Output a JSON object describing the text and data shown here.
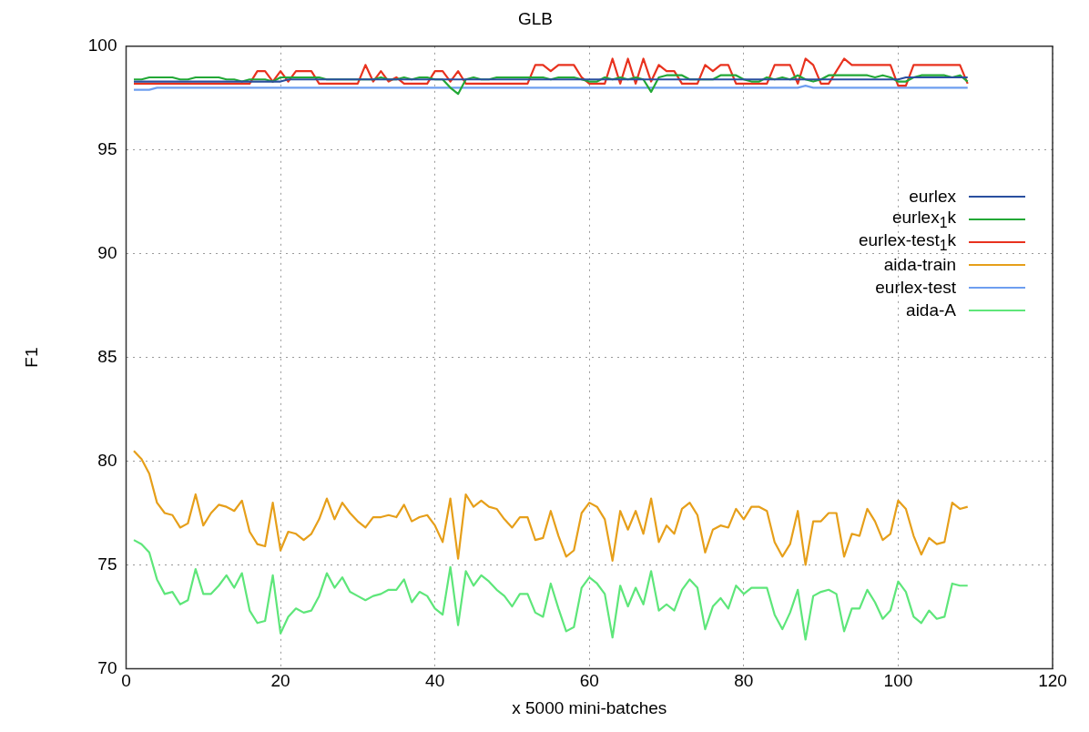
{
  "chart_data": {
    "type": "line",
    "title": "GLB",
    "xlabel": "x 5000 mini-batches",
    "ylabel": "F1",
    "x": [
      1,
      2,
      3,
      4,
      5,
      6,
      7,
      8,
      9,
      10,
      11,
      12,
      13,
      14,
      15,
      16,
      17,
      18,
      19,
      20,
      21,
      22,
      23,
      24,
      25,
      26,
      27,
      28,
      29,
      30,
      31,
      32,
      33,
      34,
      35,
      36,
      37,
      38,
      39,
      40,
      41,
      42,
      43,
      44,
      45,
      46,
      47,
      48,
      49,
      50,
      51,
      52,
      53,
      54,
      55,
      56,
      57,
      58,
      59,
      60,
      61,
      62,
      63,
      64,
      65,
      66,
      67,
      68,
      69,
      70,
      71,
      72,
      73,
      74,
      75,
      76,
      77,
      78,
      79,
      80,
      81,
      82,
      83,
      84,
      85,
      86,
      87,
      88,
      89,
      90,
      91,
      92,
      93,
      94,
      95,
      96,
      97,
      98,
      99,
      100,
      101,
      102,
      103,
      104,
      105,
      106,
      107,
      108,
      109
    ],
    "series": [
      {
        "name": "eurlex",
        "color": "#2a4f9f",
        "values": [
          98.3,
          98.3,
          98.3,
          98.3,
          98.3,
          98.3,
          98.3,
          98.3,
          98.3,
          98.3,
          98.3,
          98.3,
          98.3,
          98.3,
          98.3,
          98.3,
          98.3,
          98.3,
          98.3,
          98.3,
          98.4,
          98.4,
          98.4,
          98.4,
          98.4,
          98.4,
          98.4,
          98.4,
          98.4,
          98.4,
          98.4,
          98.4,
          98.4,
          98.4,
          98.4,
          98.4,
          98.4,
          98.4,
          98.4,
          98.4,
          98.4,
          98.4,
          98.4,
          98.4,
          98.4,
          98.4,
          98.4,
          98.4,
          98.4,
          98.4,
          98.4,
          98.4,
          98.4,
          98.4,
          98.4,
          98.4,
          98.4,
          98.4,
          98.4,
          98.4,
          98.4,
          98.4,
          98.4,
          98.4,
          98.4,
          98.4,
          98.4,
          98.4,
          98.4,
          98.4,
          98.4,
          98.4,
          98.4,
          98.4,
          98.4,
          98.4,
          98.4,
          98.4,
          98.4,
          98.4,
          98.4,
          98.4,
          98.4,
          98.4,
          98.4,
          98.4,
          98.4,
          98.4,
          98.4,
          98.4,
          98.4,
          98.4,
          98.4,
          98.4,
          98.4,
          98.4,
          98.4,
          98.4,
          98.4,
          98.4,
          98.5,
          98.5,
          98.5,
          98.5,
          98.5,
          98.5,
          98.5,
          98.5,
          98.5
        ]
      },
      {
        "name": "eurlex$_{1}$k",
        "color": "#22a836",
        "values": [
          98.4,
          98.4,
          98.5,
          98.5,
          98.5,
          98.5,
          98.4,
          98.4,
          98.5,
          98.5,
          98.5,
          98.5,
          98.4,
          98.4,
          98.3,
          98.4,
          98.4,
          98.4,
          98.3,
          98.5,
          98.5,
          98.5,
          98.5,
          98.5,
          98.5,
          98.4,
          98.4,
          98.4,
          98.4,
          98.4,
          98.4,
          98.4,
          98.5,
          98.4,
          98.4,
          98.5,
          98.4,
          98.5,
          98.5,
          98.4,
          98.4,
          98.0,
          97.7,
          98.4,
          98.5,
          98.4,
          98.4,
          98.5,
          98.5,
          98.5,
          98.5,
          98.5,
          98.5,
          98.5,
          98.4,
          98.5,
          98.5,
          98.5,
          98.4,
          98.3,
          98.3,
          98.5,
          98.4,
          98.5,
          98.4,
          98.5,
          98.4,
          97.8,
          98.5,
          98.6,
          98.6,
          98.6,
          98.4,
          98.4,
          98.4,
          98.4,
          98.6,
          98.6,
          98.6,
          98.4,
          98.3,
          98.3,
          98.5,
          98.4,
          98.5,
          98.4,
          98.6,
          98.4,
          98.3,
          98.4,
          98.6,
          98.6,
          98.6,
          98.6,
          98.6,
          98.6,
          98.5,
          98.6,
          98.5,
          98.3,
          98.3,
          98.5,
          98.6,
          98.6,
          98.6,
          98.6,
          98.5,
          98.6,
          98.3
        ]
      },
      {
        "name": "eurlex-test$_{1}$k",
        "color": "#e8321e",
        "values": [
          98.2,
          98.2,
          98.2,
          98.2,
          98.2,
          98.2,
          98.2,
          98.2,
          98.2,
          98.2,
          98.2,
          98.2,
          98.2,
          98.2,
          98.2,
          98.2,
          98.8,
          98.8,
          98.3,
          98.8,
          98.3,
          98.8,
          98.8,
          98.8,
          98.2,
          98.2,
          98.2,
          98.2,
          98.2,
          98.2,
          99.1,
          98.3,
          98.8,
          98.3,
          98.5,
          98.2,
          98.2,
          98.2,
          98.2,
          98.8,
          98.8,
          98.3,
          98.8,
          98.2,
          98.2,
          98.2,
          98.2,
          98.2,
          98.2,
          98.2,
          98.2,
          98.2,
          99.1,
          99.1,
          98.8,
          99.1,
          99.1,
          99.1,
          98.5,
          98.2,
          98.2,
          98.2,
          99.4,
          98.2,
          99.4,
          98.2,
          99.4,
          98.3,
          99.1,
          98.8,
          98.8,
          98.2,
          98.2,
          98.2,
          99.1,
          98.8,
          99.1,
          99.1,
          98.2,
          98.2,
          98.2,
          98.2,
          98.2,
          99.1,
          99.1,
          99.1,
          98.2,
          99.4,
          99.1,
          98.2,
          98.2,
          98.8,
          99.4,
          99.1,
          99.1,
          99.1,
          99.1,
          99.1,
          99.1,
          98.1,
          98.1,
          99.1,
          99.1,
          99.1,
          99.1,
          99.1,
          99.1,
          99.1,
          98.2
        ]
      },
      {
        "name": "aida-train",
        "color": "#e69f1a",
        "values": [
          80.5,
          80.1,
          79.4,
          78.0,
          77.5,
          77.4,
          76.8,
          77.0,
          78.4,
          76.9,
          77.5,
          77.9,
          77.8,
          77.6,
          78.1,
          76.6,
          76.0,
          75.9,
          78.0,
          75.7,
          76.6,
          76.5,
          76.2,
          76.5,
          77.2,
          78.2,
          77.2,
          78.0,
          77.5,
          77.1,
          76.8,
          77.3,
          77.3,
          77.4,
          77.3,
          77.9,
          77.1,
          77.3,
          77.4,
          76.9,
          76.1,
          78.2,
          75.3,
          78.4,
          77.8,
          78.1,
          77.8,
          77.7,
          77.2,
          76.8,
          77.3,
          77.3,
          76.2,
          76.3,
          77.6,
          76.4,
          75.4,
          75.7,
          77.5,
          78.0,
          77.8,
          77.2,
          75.2,
          77.6,
          76.7,
          77.6,
          76.5,
          78.2,
          76.1,
          76.9,
          76.5,
          77.7,
          78.0,
          77.4,
          75.6,
          76.7,
          76.9,
          76.8,
          77.7,
          77.2,
          77.8,
          77.8,
          77.6,
          76.1,
          75.4,
          76.0,
          77.6,
          75.0,
          77.1,
          77.1,
          77.5,
          77.5,
          75.4,
          76.5,
          76.4,
          77.7,
          77.1,
          76.2,
          76.5,
          78.1,
          77.7,
          76.4,
          75.5,
          76.3,
          76.0,
          76.1,
          78.0,
          77.7,
          77.8
        ]
      },
      {
        "name": "eurlex-test",
        "color": "#6e9ef0",
        "values": [
          97.9,
          97.9,
          97.9,
          98.0,
          98.0,
          98.0,
          98.0,
          98.0,
          98.0,
          98.0,
          98.0,
          98.0,
          98.0,
          98.0,
          98.0,
          98.0,
          98.0,
          98.0,
          98.0,
          98.0,
          98.0,
          98.0,
          98.0,
          98.0,
          98.0,
          98.0,
          98.0,
          98.0,
          98.0,
          98.0,
          98.0,
          98.0,
          98.0,
          98.0,
          98.0,
          98.0,
          98.0,
          98.0,
          98.0,
          98.0,
          98.0,
          98.0,
          98.0,
          98.0,
          98.0,
          98.0,
          98.0,
          98.0,
          98.0,
          98.0,
          98.0,
          98.0,
          98.0,
          98.0,
          98.0,
          98.0,
          98.0,
          98.0,
          98.0,
          98.0,
          98.0,
          98.0,
          98.0,
          98.0,
          98.0,
          98.0,
          98.0,
          98.0,
          98.0,
          98.0,
          98.0,
          98.0,
          98.0,
          98.0,
          98.0,
          98.0,
          98.0,
          98.0,
          98.0,
          98.0,
          98.0,
          98.0,
          98.0,
          98.0,
          98.0,
          98.0,
          98.0,
          98.1,
          98.0,
          98.0,
          98.0,
          98.0,
          98.0,
          98.0,
          98.0,
          98.0,
          98.0,
          98.0,
          98.0,
          98.0,
          98.0,
          98.0,
          98.0,
          98.0,
          98.0,
          98.0,
          98.0,
          98.0,
          98.0
        ]
      },
      {
        "name": "aida-A",
        "color": "#5ee67a",
        "values": [
          76.2,
          76.0,
          75.6,
          74.3,
          73.6,
          73.7,
          73.1,
          73.3,
          74.8,
          73.6,
          73.6,
          74.0,
          74.5,
          73.9,
          74.6,
          72.8,
          72.2,
          72.3,
          74.5,
          71.7,
          72.5,
          72.9,
          72.7,
          72.8,
          73.5,
          74.6,
          73.9,
          74.4,
          73.7,
          73.5,
          73.3,
          73.5,
          73.6,
          73.8,
          73.8,
          74.3,
          73.2,
          73.7,
          73.5,
          72.9,
          72.6,
          74.9,
          72.1,
          74.7,
          74.0,
          74.5,
          74.2,
          73.8,
          73.5,
          73.0,
          73.6,
          73.6,
          72.7,
          72.5,
          74.1,
          72.9,
          71.8,
          72.0,
          73.9,
          74.4,
          74.1,
          73.6,
          71.5,
          74.0,
          73.0,
          73.9,
          73.1,
          74.7,
          72.8,
          73.1,
          72.8,
          73.8,
          74.3,
          73.9,
          71.9,
          73.0,
          73.4,
          72.9,
          74.0,
          73.6,
          73.9,
          73.9,
          73.9,
          72.6,
          71.9,
          72.7,
          73.8,
          71.4,
          73.5,
          73.7,
          73.8,
          73.6,
          71.8,
          72.9,
          72.9,
          73.8,
          73.2,
          72.4,
          72.8,
          74.2,
          73.7,
          72.5,
          72.2,
          72.8,
          72.4,
          72.5,
          74.1,
          74.0,
          74.0
        ]
      }
    ],
    "xlim": [
      0,
      120
    ],
    "xticks": [
      0,
      20,
      40,
      60,
      80,
      100,
      120
    ],
    "ylim": [
      70,
      100
    ],
    "yticks": [
      70,
      75,
      80,
      85,
      90,
      95,
      100
    ],
    "grid": true,
    "legend": "right"
  }
}
